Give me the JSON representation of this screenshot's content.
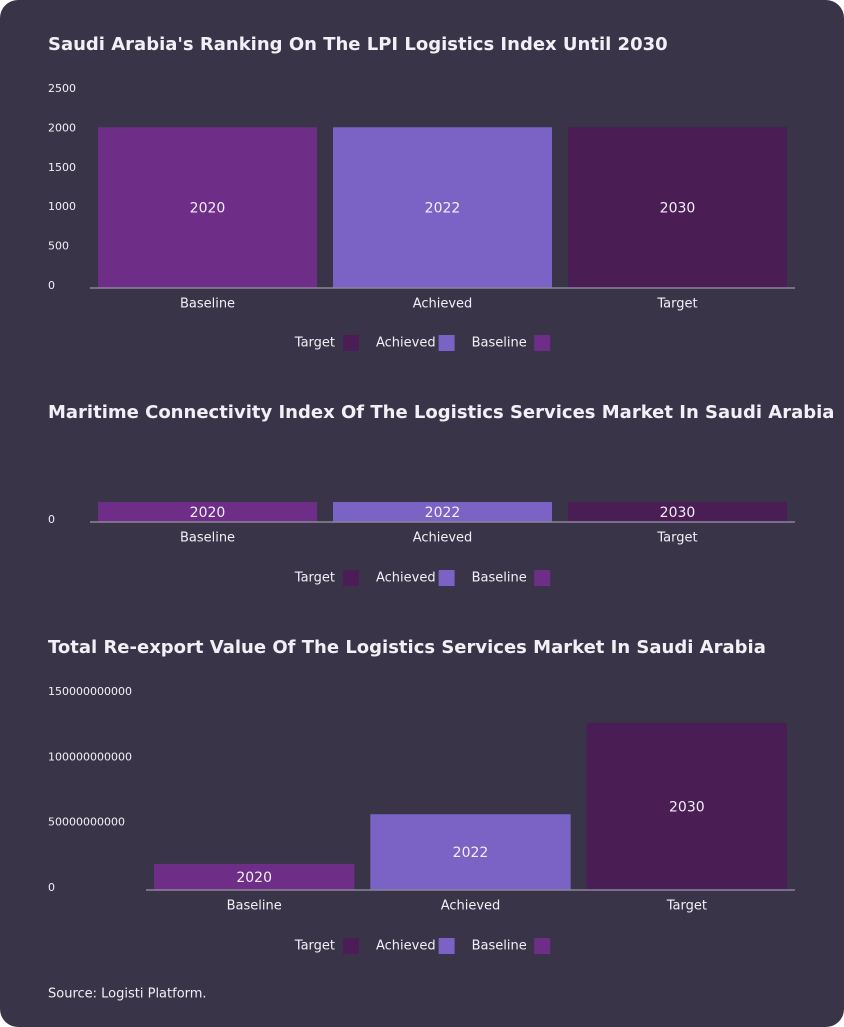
{
  "chart_data": [
    {
      "type": "bar",
      "title": "Saudi Arabia's Ranking On The LPI Logistics Index Until 2030",
      "categories": [
        "Baseline",
        "Achieved",
        "Target"
      ],
      "values": [
        2040,
        2040,
        2040
      ],
      "bar_labels": [
        "2020",
        "2022",
        "2030"
      ],
      "colors": [
        "#6e2d87",
        "#7b63c6",
        "#4a1d55"
      ],
      "ylim": [
        0,
        2500
      ],
      "yticks": [
        0,
        500,
        1000,
        1500,
        2000,
        2500
      ],
      "legend": [
        {
          "name": "Target",
          "color": "#4a1d55"
        },
        {
          "name": "Achieved",
          "color": "#7b63c6"
        },
        {
          "name": "Baseline",
          "color": "#6e2d87"
        }
      ]
    },
    {
      "type": "bar",
      "title": "Maritime Connectivity Index Of The Logistics Services Market In Saudi Arabia",
      "categories": [
        "Baseline",
        "Achieved",
        "Target"
      ],
      "values": [
        1,
        1,
        1
      ],
      "bar_labels": [
        "2020",
        "2022",
        "2030"
      ],
      "colors": [
        "#6e2d87",
        "#7b63c6",
        "#4a1d55"
      ],
      "ylim": [
        0,
        1
      ],
      "yticks": [
        0
      ],
      "legend": [
        {
          "name": "Target",
          "color": "#4a1d55"
        },
        {
          "name": "Achieved",
          "color": "#7b63c6"
        },
        {
          "name": "Baseline",
          "color": "#6e2d87"
        }
      ]
    },
    {
      "type": "bar",
      "title": "Total Re-export Value Of The Logistics Services Market In Saudi Arabia",
      "categories": [
        "Baseline",
        "Achieved",
        "Target"
      ],
      "values": [
        20000000000,
        58000000000,
        128000000000
      ],
      "bar_labels": [
        "2020",
        "2022",
        "2030"
      ],
      "colors": [
        "#6e2d87",
        "#7b63c6",
        "#4a1d55"
      ],
      "ylim": [
        0,
        150000000000
      ],
      "yticks": [
        0,
        50000000000,
        100000000000,
        150000000000
      ],
      "legend": [
        {
          "name": "Target",
          "color": "#4a1d55"
        },
        {
          "name": "Achieved",
          "color": "#7b63c6"
        },
        {
          "name": "Baseline",
          "color": "#6e2d87"
        }
      ]
    }
  ],
  "source": "Source: Logisti Platform."
}
